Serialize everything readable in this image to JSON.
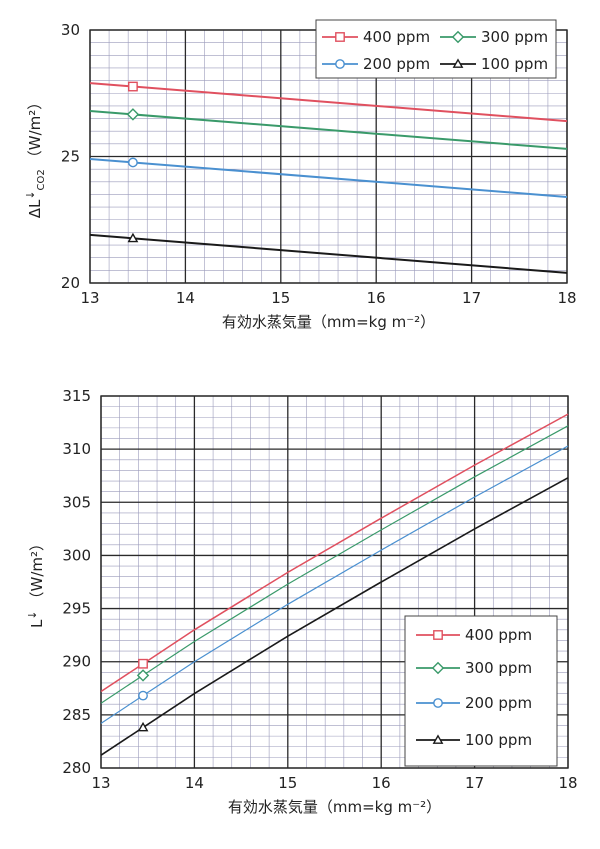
{
  "chart_data": [
    {
      "type": "line",
      "xlabel": "有効水蒸気量（mm=kg m⁻²）",
      "ylabel_main": "ΔL",
      "ylabel_sup": "↓",
      "ylabel_sub": "CO2",
      "ylabel_unit": "（W/m²）",
      "xlim": [
        13,
        18
      ],
      "ylim": [
        20,
        30
      ],
      "xticks": [
        "13",
        "14",
        "15",
        "16",
        "17",
        "18"
      ],
      "yticks": [
        "20",
        "25",
        "30"
      ],
      "grid": true,
      "legend_position": "top-right",
      "marker_x": 13.45,
      "series": [
        {
          "name": "400 ppm",
          "color": "#e0505f",
          "marker": "square",
          "x": [
            13,
            18
          ],
          "y": [
            27.9,
            26.4
          ]
        },
        {
          "name": "300 ppm",
          "color": "#3a9a6a",
          "marker": "diamond",
          "x": [
            13,
            18
          ],
          "y": [
            26.8,
            25.3
          ]
        },
        {
          "name": "200 ppm",
          "color": "#4a90d0",
          "marker": "circle",
          "x": [
            13,
            18
          ],
          "y": [
            24.9,
            23.4
          ]
        },
        {
          "name": "100 ppm",
          "color": "#1a1a1a",
          "marker": "triangle",
          "x": [
            13,
            18
          ],
          "y": [
            21.9,
            20.4
          ]
        }
      ]
    },
    {
      "type": "line",
      "xlabel": "有効水蒸気量（mm=kg m⁻²）",
      "ylabel_main": "L",
      "ylabel_sup": "↓",
      "ylabel_sub": "",
      "ylabel_unit": "（W/m²）",
      "xlim": [
        13,
        18
      ],
      "ylim": [
        280,
        315
      ],
      "xticks": [
        "13",
        "14",
        "15",
        "16",
        "17",
        "18"
      ],
      "yticks": [
        "280",
        "285",
        "290",
        "295",
        "300",
        "305",
        "310",
        "315"
      ],
      "grid": true,
      "legend_position": "bottom-right",
      "marker_x": 13.45,
      "series": [
        {
          "name": "400 ppm",
          "color": "#e0505f",
          "marker": "square",
          "x": [
            13,
            13.5,
            14,
            15,
            16,
            17,
            18
          ],
          "y": [
            287.2,
            290.1,
            293.0,
            298.4,
            303.5,
            308.5,
            313.3
          ]
        },
        {
          "name": "300 ppm",
          "color": "#3a9a6a",
          "marker": "diamond",
          "x": [
            13,
            13.5,
            14,
            15,
            16,
            17,
            18
          ],
          "y": [
            286.1,
            289.0,
            291.9,
            297.3,
            302.4,
            307.4,
            312.2
          ]
        },
        {
          "name": "200 ppm",
          "color": "#4a90d0",
          "marker": "circle",
          "x": [
            13,
            13.5,
            14,
            15,
            16,
            17,
            18
          ],
          "y": [
            284.2,
            287.1,
            290.0,
            295.4,
            300.5,
            305.5,
            310.3
          ]
        },
        {
          "name": "100 ppm",
          "color": "#1a1a1a",
          "marker": "triangle",
          "x": [
            13,
            13.5,
            14,
            15,
            16,
            17,
            18
          ],
          "y": [
            281.2,
            284.1,
            287.0,
            292.4,
            297.5,
            302.5,
            307.3
          ]
        }
      ]
    }
  ]
}
